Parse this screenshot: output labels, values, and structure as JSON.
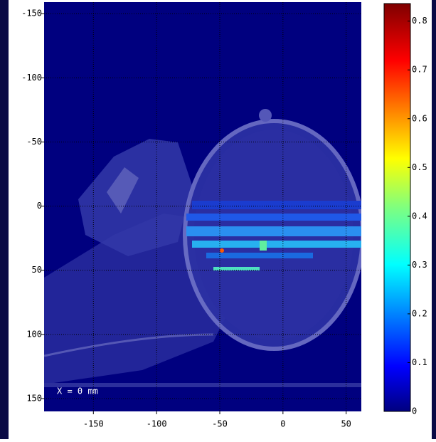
{
  "chart_data": {
    "type": "image",
    "annotation": "X = 0 mm",
    "xlim": [
      -189,
      62
    ],
    "xticks": [
      -150,
      -100,
      -50,
      0,
      50
    ],
    "ylim": [
      160,
      -159
    ],
    "yticks": [
      -150,
      -100,
      -50,
      0,
      50,
      100,
      150
    ],
    "grid": true,
    "background": "#00007f",
    "colorbar": {
      "colormap": "jet",
      "lim": [
        0,
        0.836
      ],
      "ticks": [
        0,
        0.1,
        0.2,
        0.3,
        0.4,
        0.5,
        0.6,
        0.7,
        0.8
      ]
    }
  }
}
